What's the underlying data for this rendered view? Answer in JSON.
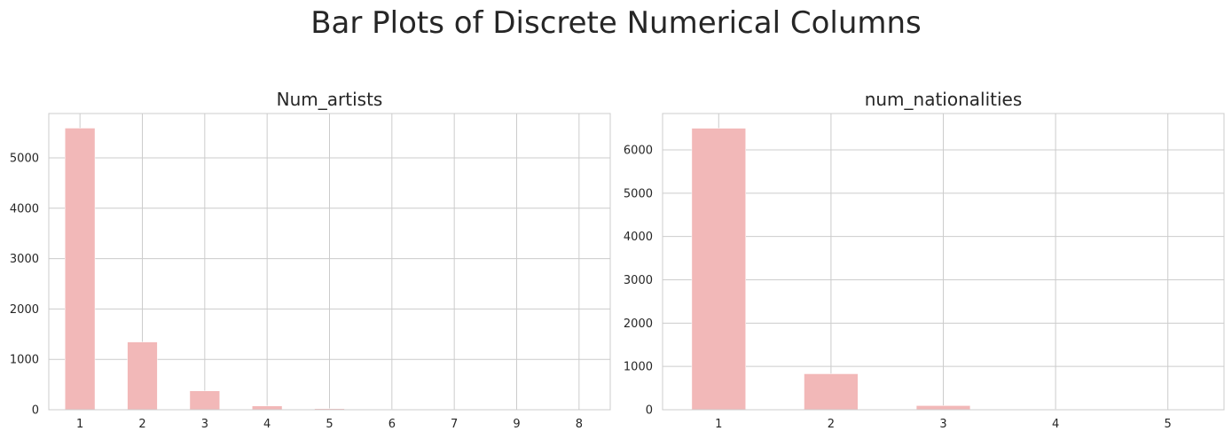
{
  "title": "Bar Plots of Discrete Numerical Columns",
  "bar_color": "#f2b8b8",
  "chart_data": [
    {
      "type": "bar",
      "title": "Num_artists",
      "categories": [
        "1",
        "2",
        "3",
        "4",
        "5",
        "6",
        "7",
        "9",
        "8"
      ],
      "values": [
        5590,
        1345,
        375,
        75,
        22,
        8,
        4,
        2,
        1
      ],
      "yticks": [
        0,
        1000,
        2000,
        3000,
        4000,
        5000
      ],
      "ylim": [
        0,
        5880
      ],
      "grid": true
    },
    {
      "type": "bar",
      "title": "num_nationalities",
      "categories": [
        "1",
        "2",
        "3",
        "4",
        "5"
      ],
      "values": [
        6500,
        830,
        95,
        10,
        3
      ],
      "yticks": [
        0,
        1000,
        2000,
        3000,
        4000,
        5000,
        6000
      ],
      "ylim": [
        0,
        6840
      ],
      "grid": true
    }
  ]
}
